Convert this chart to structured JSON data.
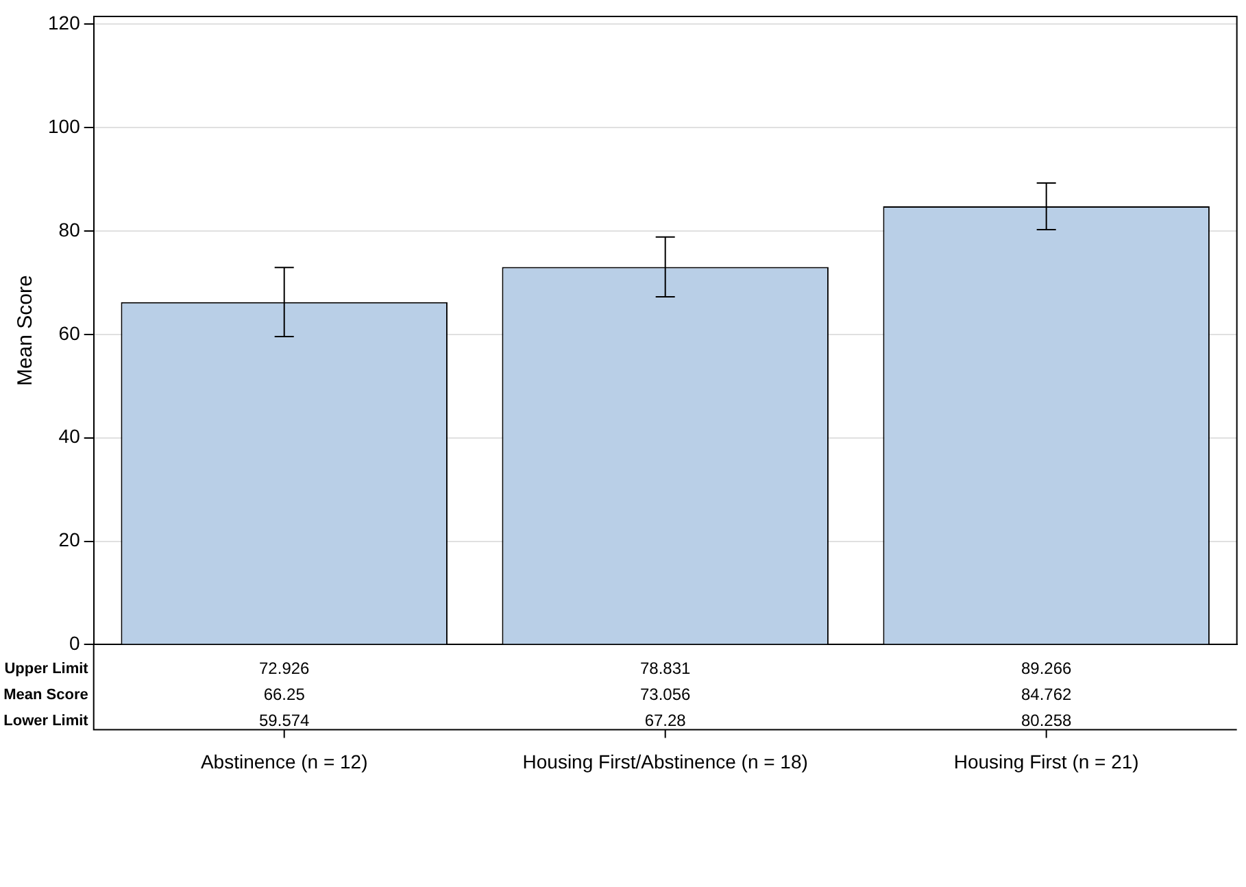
{
  "chart_data": {
    "type": "bar",
    "ylabel": "Mean Score",
    "categories": [
      "Abstinence (n = 12)",
      "Housing First/Abstinence (n = 18)",
      "Housing First (n = 21)"
    ],
    "values": [
      66.25,
      73.056,
      84.762
    ],
    "errors": [
      [
        59.574,
        72.926
      ],
      [
        67.28,
        78.831
      ],
      [
        80.258,
        89.266
      ]
    ],
    "color": "#b9cfe7",
    "ylim": [
      0,
      121.5
    ],
    "yticks": [
      0,
      20,
      40,
      60,
      80,
      100,
      120
    ],
    "grid": "y",
    "legend": false,
    "data_labels": true,
    "annotations": [
      "Upper Limit",
      "Mean Score",
      "Lower Limit",
      "72.926",
      "78.831",
      "89.266",
      "59.574",
      "67.28",
      "80.258"
    ]
  }
}
